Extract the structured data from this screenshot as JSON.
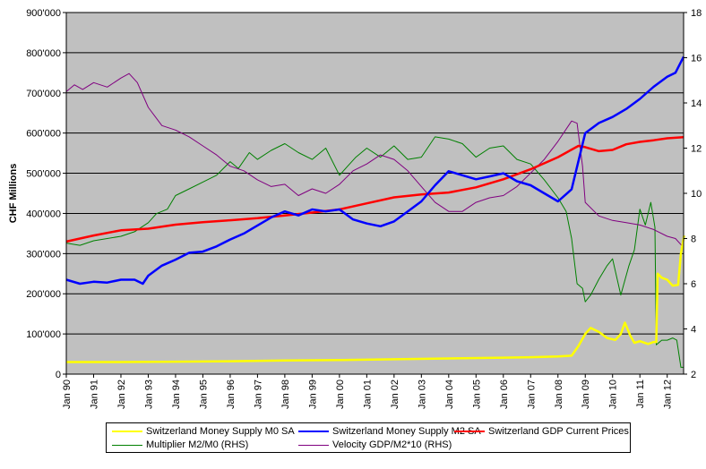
{
  "chart_data": {
    "type": "line",
    "ylabel": "CHF Millions",
    "ylim": [
      0,
      900000
    ],
    "y2lim": [
      2,
      18
    ],
    "y_ticks": [
      "0",
      "100'000",
      "200'000",
      "300'000",
      "400'000",
      "500'000",
      "600'000",
      "700'000",
      "800'000",
      "900'000"
    ],
    "y2_ticks": [
      "2",
      "4",
      "6",
      "8",
      "10",
      "12",
      "14",
      "16",
      "18"
    ],
    "x_ticks": [
      "Jan 90",
      "Jan 91",
      "Jan 92",
      "Jan 93",
      "Jan 94",
      "Jan 95",
      "Jan 96",
      "Jan 97",
      "Jan 98",
      "Jan 99",
      "Jan 00",
      "Jan 01",
      "Jan 02",
      "Jan 03",
      "Jan 04",
      "Jan 05",
      "Jan 06",
      "Jan 07",
      "Jan 08",
      "Jan 09",
      "Jan 10",
      "Jan 11",
      "Jan 12"
    ],
    "grid": true,
    "background": "#c0c0c0",
    "legend_position": "bottom",
    "series": [
      {
        "name": "Switzerland Money Supply M0 SA",
        "axis": "left",
        "color": "#ffff00",
        "points": [
          [
            1990.0,
            30000
          ],
          [
            1992.0,
            30000
          ],
          [
            1994.0,
            31000
          ],
          [
            1996.0,
            32000
          ],
          [
            1998.0,
            34000
          ],
          [
            2000.0,
            35000
          ],
          [
            2002.0,
            37000
          ],
          [
            2004.0,
            39000
          ],
          [
            2006.0,
            41000
          ],
          [
            2007.0,
            42000
          ],
          [
            2008.0,
            44000
          ],
          [
            2008.5,
            46000
          ],
          [
            2008.75,
            70000
          ],
          [
            2009.0,
            100000
          ],
          [
            2009.2,
            115000
          ],
          [
            2009.5,
            105000
          ],
          [
            2009.8,
            90000
          ],
          [
            2010.1,
            85000
          ],
          [
            2010.3,
            100000
          ],
          [
            2010.45,
            128000
          ],
          [
            2010.65,
            95000
          ],
          [
            2010.8,
            78000
          ],
          [
            2011.0,
            82000
          ],
          [
            2011.3,
            75000
          ],
          [
            2011.5,
            80000
          ],
          [
            2011.6,
            80000
          ],
          [
            2011.65,
            250000
          ],
          [
            2011.8,
            240000
          ],
          [
            2012.0,
            235000
          ],
          [
            2012.2,
            220000
          ],
          [
            2012.4,
            222000
          ],
          [
            2012.5,
            300000
          ],
          [
            2012.62,
            345000
          ]
        ]
      },
      {
        "name": "Switzerland Money Supply M2 SA",
        "axis": "left",
        "color": "#0000ff",
        "points": [
          [
            1990.0,
            235000
          ],
          [
            1990.5,
            225000
          ],
          [
            1991.0,
            230000
          ],
          [
            1991.5,
            228000
          ],
          [
            1992.0,
            235000
          ],
          [
            1992.5,
            235000
          ],
          [
            1992.8,
            225000
          ],
          [
            1993.0,
            245000
          ],
          [
            1993.5,
            270000
          ],
          [
            1994.0,
            285000
          ],
          [
            1994.5,
            302000
          ],
          [
            1995.0,
            305000
          ],
          [
            1995.5,
            318000
          ],
          [
            1996.0,
            335000
          ],
          [
            1996.5,
            350000
          ],
          [
            1997.0,
            370000
          ],
          [
            1997.5,
            390000
          ],
          [
            1998.0,
            405000
          ],
          [
            1998.5,
            395000
          ],
          [
            1999.0,
            410000
          ],
          [
            1999.5,
            405000
          ],
          [
            2000.0,
            410000
          ],
          [
            2000.5,
            385000
          ],
          [
            2001.0,
            375000
          ],
          [
            2001.5,
            368000
          ],
          [
            2002.0,
            380000
          ],
          [
            2002.5,
            405000
          ],
          [
            2003.0,
            430000
          ],
          [
            2003.5,
            470000
          ],
          [
            2004.0,
            505000
          ],
          [
            2004.5,
            495000
          ],
          [
            2005.0,
            485000
          ],
          [
            2005.5,
            492000
          ],
          [
            2006.0,
            500000
          ],
          [
            2006.5,
            480000
          ],
          [
            2007.0,
            470000
          ],
          [
            2007.5,
            450000
          ],
          [
            2008.0,
            430000
          ],
          [
            2008.5,
            460000
          ],
          [
            2008.75,
            530000
          ],
          [
            2009.0,
            600000
          ],
          [
            2009.5,
            625000
          ],
          [
            2010.0,
            640000
          ],
          [
            2010.5,
            660000
          ],
          [
            2011.0,
            685000
          ],
          [
            2011.5,
            715000
          ],
          [
            2011.8,
            730000
          ],
          [
            2012.0,
            740000
          ],
          [
            2012.3,
            750000
          ],
          [
            2012.6,
            790000
          ]
        ]
      },
      {
        "name": "Switzerland GDP Current Prices",
        "axis": "left",
        "color": "#ff0000",
        "points": [
          [
            1990.0,
            330000
          ],
          [
            1991.0,
            345000
          ],
          [
            1992.0,
            358000
          ],
          [
            1993.0,
            362000
          ],
          [
            1994.0,
            372000
          ],
          [
            1995.0,
            378000
          ],
          [
            1996.0,
            383000
          ],
          [
            1997.0,
            388000
          ],
          [
            1998.0,
            395000
          ],
          [
            1999.0,
            402000
          ],
          [
            2000.0,
            410000
          ],
          [
            2001.0,
            425000
          ],
          [
            2002.0,
            440000
          ],
          [
            2003.0,
            447000
          ],
          [
            2004.0,
            452000
          ],
          [
            2005.0,
            465000
          ],
          [
            2006.0,
            485000
          ],
          [
            2007.0,
            510000
          ],
          [
            2008.0,
            540000
          ],
          [
            2008.75,
            568000
          ],
          [
            2009.0,
            565000
          ],
          [
            2009.5,
            555000
          ],
          [
            2010.0,
            558000
          ],
          [
            2010.5,
            572000
          ],
          [
            2011.0,
            578000
          ],
          [
            2011.5,
            582000
          ],
          [
            2012.0,
            587000
          ],
          [
            2012.6,
            590000
          ]
        ]
      },
      {
        "name": "Multiplier M2/M0 (RHS)",
        "axis": "right",
        "color": "#008000",
        "points": [
          [
            1990.0,
            7.8
          ],
          [
            1990.5,
            7.7
          ],
          [
            1991.0,
            7.9
          ],
          [
            1991.5,
            8.0
          ],
          [
            1992.0,
            8.1
          ],
          [
            1992.5,
            8.3
          ],
          [
            1993.0,
            8.7
          ],
          [
            1993.3,
            9.1
          ],
          [
            1993.7,
            9.3
          ],
          [
            1994.0,
            9.9
          ],
          [
            1994.5,
            10.2
          ],
          [
            1995.0,
            10.5
          ],
          [
            1995.5,
            10.8
          ],
          [
            1996.0,
            11.4
          ],
          [
            1996.3,
            11.1
          ],
          [
            1996.7,
            11.8
          ],
          [
            1997.0,
            11.5
          ],
          [
            1997.5,
            11.9
          ],
          [
            1998.0,
            12.2
          ],
          [
            1998.5,
            11.8
          ],
          [
            1999.0,
            11.5
          ],
          [
            1999.5,
            12.0
          ],
          [
            2000.0,
            10.8
          ],
          [
            2000.3,
            11.2
          ],
          [
            2000.6,
            11.6
          ],
          [
            2001.0,
            12.0
          ],
          [
            2001.5,
            11.6
          ],
          [
            2002.0,
            12.1
          ],
          [
            2002.5,
            11.5
          ],
          [
            2003.0,
            11.6
          ],
          [
            2003.5,
            12.5
          ],
          [
            2004.0,
            12.4
          ],
          [
            2004.5,
            12.2
          ],
          [
            2005.0,
            11.6
          ],
          [
            2005.5,
            12.0
          ],
          [
            2006.0,
            12.1
          ],
          [
            2006.5,
            11.5
          ],
          [
            2007.0,
            11.3
          ],
          [
            2007.5,
            10.6
          ],
          [
            2008.0,
            9.8
          ],
          [
            2008.3,
            9.2
          ],
          [
            2008.5,
            8.0
          ],
          [
            2008.7,
            6.0
          ],
          [
            2008.9,
            5.8
          ],
          [
            2009.0,
            5.2
          ],
          [
            2009.2,
            5.5
          ],
          [
            2009.5,
            6.2
          ],
          [
            2009.8,
            6.8
          ],
          [
            2010.0,
            7.1
          ],
          [
            2010.3,
            5.5
          ],
          [
            2010.6,
            6.8
          ],
          [
            2010.8,
            7.5
          ],
          [
            2011.0,
            9.3
          ],
          [
            2011.2,
            8.6
          ],
          [
            2011.4,
            9.6
          ],
          [
            2011.55,
            8.5
          ],
          [
            2011.6,
            3.3
          ],
          [
            2011.8,
            3.5
          ],
          [
            2012.0,
            3.5
          ],
          [
            2012.2,
            3.6
          ],
          [
            2012.35,
            3.5
          ],
          [
            2012.5,
            2.3
          ],
          [
            2012.6,
            2.3
          ]
        ]
      },
      {
        "name": "Velocity GDP/M2*10 (RHS)",
        "axis": "right",
        "color": "#800080",
        "points": [
          [
            1990.0,
            14.5
          ],
          [
            1990.3,
            14.8
          ],
          [
            1990.6,
            14.6
          ],
          [
            1991.0,
            14.9
          ],
          [
            1991.5,
            14.7
          ],
          [
            1992.0,
            15.1
          ],
          [
            1992.3,
            15.3
          ],
          [
            1992.6,
            14.9
          ],
          [
            1993.0,
            13.8
          ],
          [
            1993.5,
            13.0
          ],
          [
            1994.0,
            12.8
          ],
          [
            1994.5,
            12.5
          ],
          [
            1995.0,
            12.1
          ],
          [
            1995.5,
            11.7
          ],
          [
            1996.0,
            11.2
          ],
          [
            1996.5,
            11.0
          ],
          [
            1997.0,
            10.6
          ],
          [
            1997.5,
            10.3
          ],
          [
            1998.0,
            10.4
          ],
          [
            1998.5,
            9.9
          ],
          [
            1999.0,
            10.2
          ],
          [
            1999.5,
            10.0
          ],
          [
            2000.0,
            10.4
          ],
          [
            2000.5,
            11.0
          ],
          [
            2001.0,
            11.3
          ],
          [
            2001.5,
            11.7
          ],
          [
            2002.0,
            11.5
          ],
          [
            2002.5,
            11.0
          ],
          [
            2003.0,
            10.3
          ],
          [
            2003.5,
            9.6
          ],
          [
            2004.0,
            9.2
          ],
          [
            2004.5,
            9.2
          ],
          [
            2005.0,
            9.6
          ],
          [
            2005.5,
            9.8
          ],
          [
            2006.0,
            9.9
          ],
          [
            2006.5,
            10.3
          ],
          [
            2007.0,
            10.9
          ],
          [
            2007.5,
            11.5
          ],
          [
            2008.0,
            12.3
          ],
          [
            2008.5,
            13.2
          ],
          [
            2008.7,
            13.1
          ],
          [
            2008.9,
            11.2
          ],
          [
            2009.0,
            9.6
          ],
          [
            2009.5,
            9.0
          ],
          [
            2010.0,
            8.8
          ],
          [
            2010.5,
            8.7
          ],
          [
            2011.0,
            8.6
          ],
          [
            2011.5,
            8.4
          ],
          [
            2012.0,
            8.1
          ],
          [
            2012.3,
            8.0
          ],
          [
            2012.6,
            7.6
          ]
        ]
      }
    ]
  }
}
